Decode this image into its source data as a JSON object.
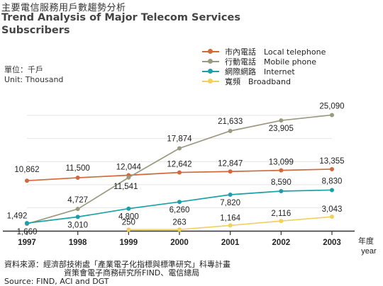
{
  "header": {
    "title_zh": "主要電信服務用戶數趨勢分析",
    "title_en": "Trend Analysis of Major Telecom Services Subscribers"
  },
  "unit": {
    "zh": "單位：千戶",
    "en": "Unit: Thousand"
  },
  "footer": {
    "source_zh_1": "資料來源：經濟部技術處「產業電子化指標與標準研究」科專計畫",
    "source_zh_2": "資策會電子商務研究所FIND、電信總局",
    "source_en": "Source: FIND, ACI and DGT"
  },
  "chart_data": {
    "type": "line",
    "x": [
      1997,
      1998,
      1999,
      2000,
      2001,
      2002,
      2003
    ],
    "x_tick_labels": [
      "1997",
      "1998",
      "1999",
      "2000",
      "2001",
      "2002",
      "2003"
    ],
    "xlabel": "年度",
    "xlabel_en": "year",
    "ylim": [
      0,
      27000
    ],
    "grid": true,
    "legend_position": "top-right",
    "series": [
      {
        "name": "市內電話　Local telephone",
        "color": "#d2693a",
        "x": [
          1997,
          1998,
          1999,
          2000,
          2001,
          2002,
          2003
        ],
        "values": [
          10862,
          11500,
          12044,
          12642,
          12847,
          13099,
          13355
        ],
        "labels": [
          "10,862",
          "11,500",
          "12,044",
          "12,642",
          "12,847",
          "13,099",
          "13,355"
        ]
      },
      {
        "name": "行動電話　Mobile phone",
        "color": "#9a9a80",
        "x": [
          1997,
          1998,
          1999,
          2000,
          2001,
          2002,
          2003
        ],
        "values": [
          1492,
          4727,
          11541,
          17874,
          21633,
          23905,
          25090
        ],
        "labels": [
          "1,492",
          "4,727",
          "11,541",
          "17,874",
          "21,633",
          "23,905",
          "25,090"
        ]
      },
      {
        "name": "網際網路　Internet",
        "color": "#1aa0a8",
        "x": [
          1997,
          1998,
          1999,
          2000,
          2001,
          2002,
          2003
        ],
        "values": [
          1660,
          3010,
          4800,
          6260,
          7820,
          8590,
          8830
        ],
        "labels": [
          "1,660",
          "3,010",
          "4,800",
          "6,260",
          "7,820",
          "8,590",
          "8,830"
        ]
      },
      {
        "name": "寬頻　Broadband",
        "color": "#f0d060",
        "x": [
          1999,
          2000,
          2001,
          2002,
          2003
        ],
        "values": [
          250,
          263,
          1164,
          2116,
          3043
        ],
        "labels": [
          "250",
          "263",
          "1,164",
          "2,116",
          "3,043"
        ]
      }
    ]
  }
}
